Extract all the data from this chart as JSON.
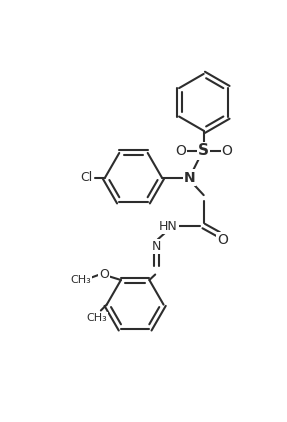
{
  "bg_color": "#ffffff",
  "line_color": "#2d2d2d",
  "line_width": 1.5,
  "figsize": [
    2.87,
    4.22
  ],
  "dpi": 100,
  "xlim": [
    -1.7,
    1.7
  ],
  "ylim": [
    -1.8,
    1.6
  ]
}
